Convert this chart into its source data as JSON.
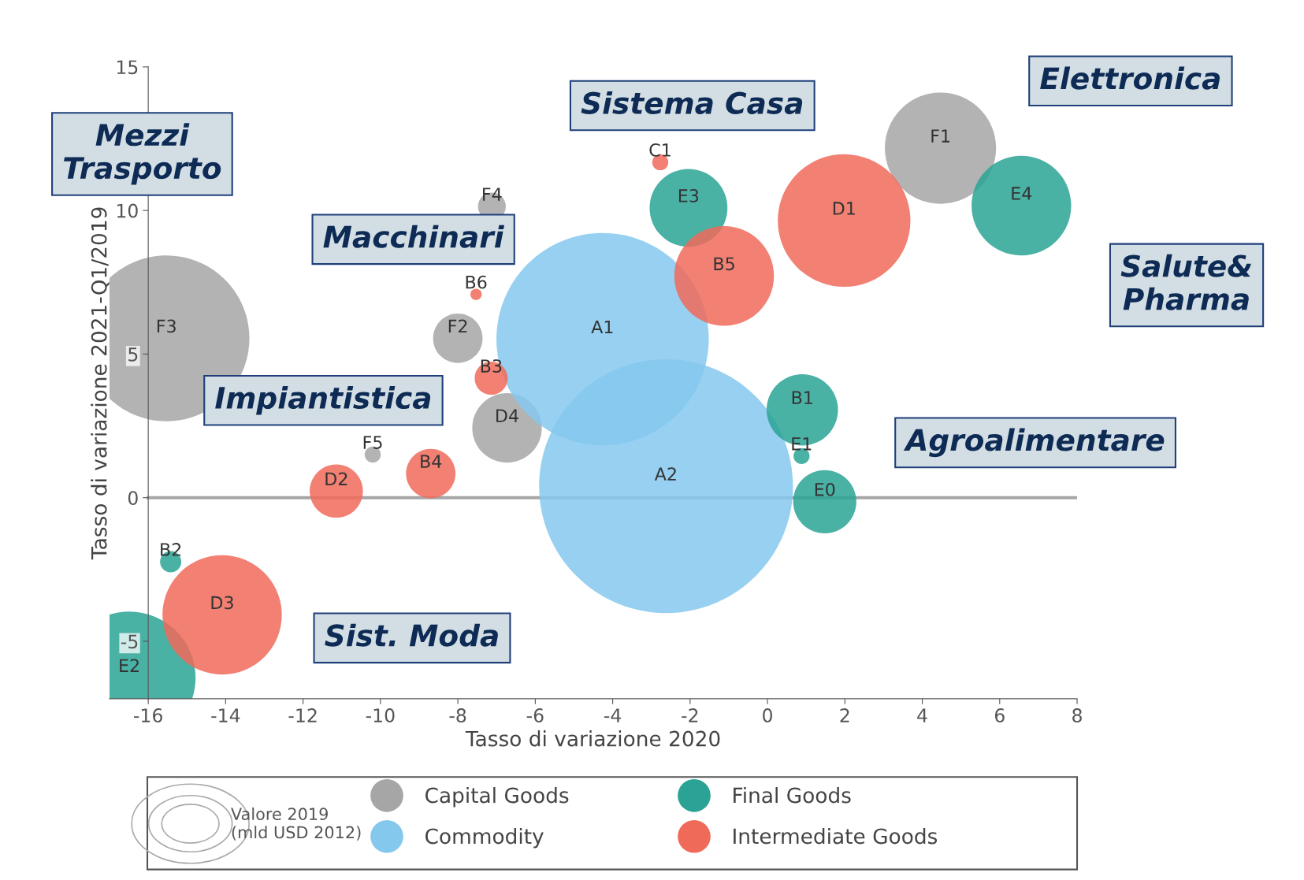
{
  "chart_data": {
    "type": "bubble",
    "xlabel": "Tasso di variazione 2020",
    "ylabel": "Tasso di variazione 2021-Q1/2019",
    "xlim": [
      -17,
      8
    ],
    "ylim": [
      -7,
      15
    ],
    "xticks": [
      -16,
      -14,
      -12,
      -10,
      -8,
      -6,
      -4,
      -2,
      0,
      2,
      4,
      6,
      8
    ],
    "yticks": [
      -5,
      0,
      5,
      10,
      15
    ],
    "grid": false,
    "legend": "bottom",
    "marker": "circle",
    "ref_lines": [
      {
        "axis": "y",
        "value": 0,
        "color": "#a6a6a6"
      }
    ],
    "series": [
      {
        "name": "Capital Goods",
        "color": "#a6a6a6",
        "x": [
          -15.53,
          -7.12,
          -8.0,
          -6.73,
          -10.2,
          4.47
        ],
        "values": [
          5.55,
          10.14,
          5.55,
          2.43,
          1.5,
          12.17
        ],
        "sizes": [
          0.427,
          0.012,
          0.038,
          0.075,
          0.004,
          0.192
        ],
        "value_labels": [
          "F3",
          "F4",
          "F2",
          "D4",
          "F5",
          "F1"
        ]
      },
      {
        "name": "Commodity",
        "color": "#85c8ee",
        "x": [
          -4.26,
          -2.62
        ],
        "values": [
          5.52,
          0.4
        ],
        "sizes": [
          0.7,
          1
        ],
        "value_labels": [
          "A1",
          "A2"
        ]
      },
      {
        "name": "Final Goods",
        "color": "#2aa395",
        "x": [
          -15.42,
          -16.49,
          -2.04,
          6.56,
          0.9,
          0.88,
          1.48
        ],
        "values": [
          -2.23,
          -6.27,
          10.09,
          10.17,
          3.06,
          1.45,
          -0.14
        ],
        "sizes": [
          0.007,
          0.273,
          0.094,
          0.154,
          0.079,
          0.004,
          0.062
        ],
        "value_labels": [
          "B2",
          "E2",
          "E3",
          "E4",
          "B1",
          "E1",
          "E0"
        ]
      },
      {
        "name": "Intermediate Goods",
        "color": "#f06a5a",
        "x": [
          -7.53,
          -7.14,
          -8.7,
          -11.14,
          -14.09,
          -2.77,
          -1.12,
          1.98
        ],
        "values": [
          7.08,
          4.16,
          0.84,
          0.23,
          -4.08,
          11.68,
          7.72,
          9.65
        ],
        "sizes": [
          0.002,
          0.017,
          0.038,
          0.044,
          0.221,
          0.004,
          0.154,
          0.273
        ],
        "value_labels": [
          "B6",
          "B3",
          "B4",
          "D2",
          "D3",
          "C1",
          "B5",
          "D1"
        ]
      }
    ],
    "annotations": [
      "Mezzi\nTrasporto",
      "Sistema Casa",
      "Elettronica",
      "Macchinari",
      "Salute&\nPharma",
      "Impiantistica",
      "Agroalimentare",
      "Sist. Moda",
      "Valore 2019\n(mld USD 2012)"
    ]
  }
}
